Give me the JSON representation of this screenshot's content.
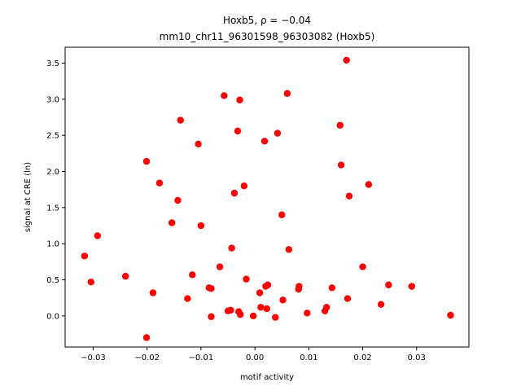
{
  "chart_data": {
    "type": "scatter",
    "title_line1": "Hoxb5, ρ = −0.04",
    "title_line2": "mm10_chr11_96301598_96303082 (Hoxb5)",
    "xlabel": "motif activity",
    "ylabel": "signal at CRE (ln)",
    "xlim": [
      -0.0352,
      0.0397
    ],
    "ylim": [
      -0.43,
      3.72
    ],
    "x_ticks": [
      -0.03,
      -0.02,
      -0.01,
      0.0,
      0.01,
      0.02,
      0.03
    ],
    "x_tick_labels": [
      "−0.03",
      "−0.02",
      "−0.01",
      "0.00",
      "0.01",
      "0.02",
      "0.03"
    ],
    "y_ticks": [
      0.0,
      0.5,
      1.0,
      1.5,
      2.0,
      2.5,
      3.0,
      3.5
    ],
    "y_tick_labels": [
      "0.0",
      "0.5",
      "1.0",
      "1.5",
      "2.0",
      "2.5",
      "3.0",
      "3.5"
    ],
    "point_color": "#ff0000",
    "grid": false,
    "points": [
      {
        "x": -0.0316,
        "y": 0.83
      },
      {
        "x": -0.0304,
        "y": 0.47
      },
      {
        "x": -0.0292,
        "y": 1.11
      },
      {
        "x": -0.024,
        "y": 0.55
      },
      {
        "x": -0.0201,
        "y": 2.14
      },
      {
        "x": -0.0201,
        "y": -0.3
      },
      {
        "x": -0.0189,
        "y": 0.32
      },
      {
        "x": -0.0177,
        "y": 1.84
      },
      {
        "x": -0.0154,
        "y": 1.29
      },
      {
        "x": -0.0143,
        "y": 1.6
      },
      {
        "x": -0.0138,
        "y": 2.71
      },
      {
        "x": -0.0125,
        "y": 0.24
      },
      {
        "x": -0.0116,
        "y": 0.57
      },
      {
        "x": -0.0105,
        "y": 2.38
      },
      {
        "x": -0.01,
        "y": 1.25
      },
      {
        "x": -0.0085,
        "y": 0.39
      },
      {
        "x": -0.0081,
        "y": 0.38
      },
      {
        "x": -0.0081,
        "y": -0.01
      },
      {
        "x": -0.0065,
        "y": 0.68
      },
      {
        "x": -0.0057,
        "y": 3.05
      },
      {
        "x": -0.005,
        "y": 0.07
      },
      {
        "x": -0.0045,
        "y": 0.08
      },
      {
        "x": -0.0043,
        "y": 0.94
      },
      {
        "x": -0.0038,
        "y": 1.7
      },
      {
        "x": -0.0032,
        "y": 2.56
      },
      {
        "x": -0.003,
        "y": 0.06
      },
      {
        "x": -0.0028,
        "y": 2.99
      },
      {
        "x": -0.0027,
        "y": 0.02
      },
      {
        "x": -0.002,
        "y": 1.8
      },
      {
        "x": -0.0016,
        "y": 0.51
      },
      {
        "x": -0.0003,
        "y": 0.0
      },
      {
        "x": 0.0009,
        "y": 0.32
      },
      {
        "x": 0.0011,
        "y": 0.12
      },
      {
        "x": 0.0018,
        "y": 2.42
      },
      {
        "x": 0.002,
        "y": 0.41
      },
      {
        "x": 0.0022,
        "y": 0.1
      },
      {
        "x": 0.0024,
        "y": 0.43
      },
      {
        "x": 0.0038,
        "y": -0.02
      },
      {
        "x": 0.0042,
        "y": 2.53
      },
      {
        "x": 0.005,
        "y": 1.4
      },
      {
        "x": 0.0052,
        "y": 0.22
      },
      {
        "x": 0.006,
        "y": 3.08
      },
      {
        "x": 0.0063,
        "y": 0.92
      },
      {
        "x": 0.0081,
        "y": 0.37
      },
      {
        "x": 0.0082,
        "y": 0.41
      },
      {
        "x": 0.0097,
        "y": 0.04
      },
      {
        "x": 0.013,
        "y": 0.07
      },
      {
        "x": 0.0133,
        "y": 0.12
      },
      {
        "x": 0.0143,
        "y": 0.39
      },
      {
        "x": 0.0158,
        "y": 2.64
      },
      {
        "x": 0.016,
        "y": 2.09
      },
      {
        "x": 0.017,
        "y": 3.54
      },
      {
        "x": 0.0172,
        "y": 0.24
      },
      {
        "x": 0.0175,
        "y": 1.66
      },
      {
        "x": 0.02,
        "y": 0.68
      },
      {
        "x": 0.0211,
        "y": 1.82
      },
      {
        "x": 0.0234,
        "y": 0.16
      },
      {
        "x": 0.0248,
        "y": 0.43
      },
      {
        "x": 0.0291,
        "y": 0.41
      },
      {
        "x": 0.0363,
        "y": 0.01
      }
    ]
  }
}
